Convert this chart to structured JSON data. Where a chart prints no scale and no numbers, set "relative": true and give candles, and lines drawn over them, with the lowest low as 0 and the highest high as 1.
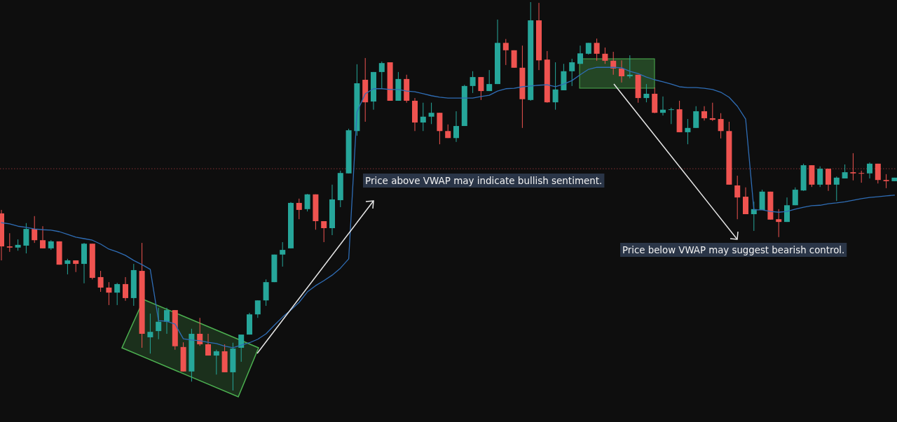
{
  "chart_data": {
    "type": "candlestick",
    "relative": true,
    "categories": [
      null,
      null,
      null,
      null,
      null,
      null,
      null,
      null,
      null,
      null,
      null,
      null,
      null,
      null,
      null,
      null,
      null,
      null,
      null,
      null,
      null,
      null,
      null,
      null,
      null,
      null,
      null,
      null,
      null,
      null,
      null,
      null,
      null,
      null,
      null,
      null,
      null,
      null,
      null,
      null,
      null,
      null,
      null,
      null,
      null,
      null,
      null,
      null,
      null,
      null,
      null,
      null,
      null,
      null,
      null,
      null,
      null,
      null,
      null,
      null,
      null,
      null,
      null,
      null,
      null,
      null,
      null,
      null,
      null,
      null,
      null,
      null,
      null,
      null,
      null,
      null,
      null,
      null,
      null,
      null,
      null,
      null,
      null,
      null,
      null,
      null,
      null,
      null,
      null,
      null,
      null,
      null,
      null,
      null,
      null,
      null,
      null,
      null,
      null,
      null,
      null,
      null,
      null,
      null,
      null,
      null,
      null,
      null,
      null
    ],
    "ohlc": [
      [
        0.456,
        0.465,
        0.335,
        0.371
      ],
      [
        0.371,
        0.405,
        0.357,
        0.368
      ],
      [
        0.368,
        0.389,
        0.36,
        0.375
      ],
      [
        0.373,
        0.431,
        0.353,
        0.416
      ],
      [
        0.416,
        0.449,
        0.38,
        0.387
      ],
      [
        0.387,
        0.423,
        0.366,
        0.366
      ],
      [
        0.366,
        0.387,
        0.362,
        0.384
      ],
      [
        0.384,
        0.384,
        0.324,
        0.324
      ],
      [
        0.326,
        0.339,
        0.299,
        0.335
      ],
      [
        0.335,
        0.335,
        0.305,
        0.326
      ],
      [
        0.326,
        0.38,
        0.276,
        0.378
      ],
      [
        0.378,
        0.378,
        0.286,
        0.29
      ],
      [
        0.292,
        0.308,
        0.254,
        0.265
      ],
      [
        0.265,
        0.279,
        0.22,
        0.252
      ],
      [
        0.252,
        0.277,
        0.22,
        0.274
      ],
      [
        0.274,
        0.292,
        0.231,
        0.238
      ],
      [
        0.238,
        0.326,
        0.218,
        0.31
      ],
      [
        0.308,
        0.38,
        0.11,
        0.146
      ],
      [
        0.137,
        0.198,
        0.095,
        0.151
      ],
      [
        0.153,
        0.213,
        0.132,
        0.177
      ],
      [
        0.177,
        0.213,
        0.146,
        0.207
      ],
      [
        0.207,
        0.207,
        0.105,
        0.114
      ],
      [
        0.112,
        0.124,
        0.049,
        0.049
      ],
      [
        0.049,
        0.159,
        0.023,
        0.146
      ],
      [
        0.146,
        0.187,
        0.115,
        0.119
      ],
      [
        0.119,
        0.146,
        0.09,
        0.09
      ],
      [
        0.09,
        0.105,
        0.041,
        0.101
      ],
      [
        0.101,
        0.119,
        0.047,
        0.047
      ],
      [
        0.047,
        0.123,
        0,
        0.108
      ],
      [
        0.11,
        0.144,
        0.074,
        0.144
      ],
      [
        0.144,
        0.2,
        0.144,
        0.196
      ],
      [
        0.196,
        0.232,
        0.187,
        0.232
      ],
      [
        0.232,
        0.286,
        0.218,
        0.279
      ],
      [
        0.279,
        0.35,
        0.279,
        0.35
      ],
      [
        0.35,
        0.382,
        0.319,
        0.362
      ],
      [
        0.366,
        0.485,
        0.366,
        0.483
      ],
      [
        0.483,
        0.494,
        0.441,
        0.465
      ],
      [
        0.467,
        0.506,
        0.461,
        0.505
      ],
      [
        0.505,
        0.505,
        0.414,
        0.436
      ],
      [
        0.436,
        0.436,
        0.382,
        0.418
      ],
      [
        0.418,
        0.53,
        0.4,
        0.492
      ],
      [
        0.49,
        0.566,
        0.472,
        0.56
      ],
      [
        0.559,
        0.674,
        0.559,
        0.67
      ],
      [
        0.668,
        0.84,
        0.656,
        0.791
      ],
      [
        0.8,
        0.856,
        0.692,
        0.742
      ],
      [
        0.744,
        0.82,
        0.723,
        0.82
      ],
      [
        0.82,
        0.847,
        0.777,
        0.843
      ],
      [
        0.845,
        0.845,
        0.746,
        0.746
      ],
      [
        0.746,
        0.82,
        0.746,
        0.802
      ],
      [
        0.802,
        0.813,
        0.741,
        0.746
      ],
      [
        0.746,
        0.753,
        0.668,
        0.69
      ],
      [
        0.69,
        0.741,
        0.668,
        0.705
      ],
      [
        0.705,
        0.741,
        0.686,
        0.715
      ],
      [
        0.715,
        0.715,
        0.634,
        0.668
      ],
      [
        0.668,
        0.685,
        0.65,
        0.65
      ],
      [
        0.65,
        0.719,
        0.64,
        0.681
      ],
      [
        0.681,
        0.787,
        0.681,
        0.784
      ],
      [
        0.784,
        0.822,
        0.766,
        0.807
      ],
      [
        0.807,
        0.807,
        0.748,
        0.771
      ],
      [
        0.771,
        0.825,
        0.771,
        0.789
      ],
      [
        0.789,
        0.955,
        0.789,
        0.895
      ],
      [
        0.895,
        0.905,
        0.838,
        0.876
      ],
      [
        0.876,
        0.876,
        0.831,
        0.831
      ],
      [
        0.831,
        0.888,
        0.676,
        0.75
      ],
      [
        0.748,
        1,
        0.746,
        0.953
      ],
      [
        0.953,
        0.998,
        0.825,
        0.85
      ],
      [
        0.852,
        0.874,
        0.741,
        0.742
      ],
      [
        0.742,
        0.845,
        0.723,
        0.775
      ],
      [
        0.773,
        0.841,
        0.773,
        0.822
      ],
      [
        0.822,
        0.854,
        0.784,
        0.845
      ],
      [
        0.841,
        0.888,
        0.841,
        0.868
      ],
      [
        0.867,
        0.895,
        0.865,
        0.895
      ],
      [
        0.895,
        0.906,
        0.849,
        0.867
      ],
      [
        0.867,
        0.883,
        0.841,
        0.849
      ],
      [
        0.849,
        0.872,
        0.813,
        0.829
      ],
      [
        0.829,
        0.85,
        0.793,
        0.809
      ],
      [
        0.809,
        0.863,
        0.804,
        0.813
      ],
      [
        0.813,
        0.813,
        0.741,
        0.753
      ],
      [
        0.753,
        0.789,
        0.742,
        0.764
      ],
      [
        0.764,
        0.78,
        0.714,
        0.715
      ],
      [
        0.715,
        0.757,
        0.708,
        0.723
      ],
      [
        0.723,
        0.728,
        0.686,
        0.724
      ],
      [
        0.724,
        0.746,
        0.665,
        0.665
      ],
      [
        0.665,
        0.699,
        0.634,
        0.676
      ],
      [
        0.676,
        0.732,
        0.676,
        0.719
      ],
      [
        0.719,
        0.732,
        0.695,
        0.701
      ],
      [
        0.701,
        0.741,
        0.694,
        0.697
      ],
      [
        0.699,
        0.714,
        0.649,
        0.668
      ],
      [
        0.668,
        0.692,
        0.53,
        0.53
      ],
      [
        0.528,
        0.553,
        0.441,
        0.497
      ],
      [
        0.499,
        0.523,
        0.454,
        0.454
      ],
      [
        0.454,
        0.486,
        0.411,
        0.467
      ],
      [
        0.465,
        0.517,
        0.465,
        0.512
      ],
      [
        0.512,
        0.512,
        0.44,
        0.44
      ],
      [
        0.441,
        0.467,
        0.395,
        0.434
      ],
      [
        0.434,
        0.497,
        0.434,
        0.477
      ],
      [
        0.477,
        0.523,
        0.477,
        0.517
      ],
      [
        0.515,
        0.584,
        0.514,
        0.58
      ],
      [
        0.58,
        0.58,
        0.524,
        0.53
      ],
      [
        0.53,
        0.577,
        0.524,
        0.571
      ],
      [
        0.571,
        0.571,
        0.514,
        0.53
      ],
      [
        0.53,
        0.551,
        0.488,
        0.548
      ],
      [
        0.546,
        0.582,
        0.546,
        0.562
      ],
      [
        0.562,
        0.611,
        0.541,
        0.559
      ],
      [
        0.56,
        0.566,
        0.535,
        0.559
      ],
      [
        0.559,
        0.587,
        0.546,
        0.584
      ],
      [
        0.584,
        0.584,
        0.533,
        0.542
      ],
      [
        0.542,
        0.557,
        0.521,
        0.539
      ],
      [
        0.539,
        0.548,
        0.539,
        0.548
      ]
    ],
    "colors": [
      "#ef5350",
      "#ef5350",
      "#26a69a",
      "#26a69a",
      "#ef5350",
      "#ef5350",
      "#26a69a",
      "#ef5350",
      "#26a69a",
      "#ef5350",
      "#26a69a",
      "#ef5350",
      "#ef5350",
      "#ef5350",
      "#26a69a",
      "#ef5350",
      "#26a69a",
      "#ef5350",
      "#26a69a",
      "#26a69a",
      "#26a69a",
      "#ef5350",
      "#ef5350",
      "#26a69a",
      "#ef5350",
      "#ef5350",
      "#26a69a",
      "#ef5350",
      "#26a69a",
      "#26a69a",
      "#26a69a",
      "#26a69a",
      "#26a69a",
      "#26a69a",
      "#26a69a",
      "#26a69a",
      "#ef5350",
      "#26a69a",
      "#ef5350",
      "#ef5350",
      "#26a69a",
      "#26a69a",
      "#26a69a",
      "#26a69a",
      "#ef5350",
      "#26a69a",
      "#26a69a",
      "#ef5350",
      "#26a69a",
      "#ef5350",
      "#ef5350",
      "#26a69a",
      "#26a69a",
      "#ef5350",
      "#ef5350",
      "#26a69a",
      "#26a69a",
      "#26a69a",
      "#ef5350",
      "#26a69a",
      "#26a69a",
      "#ef5350",
      "#ef5350",
      "#ef5350",
      "#26a69a",
      "#ef5350",
      "#ef5350",
      "#26a69a",
      "#26a69a",
      "#26a69a",
      "#26a69a",
      "#26a69a",
      "#ef5350",
      "#ef5350",
      "#ef5350",
      "#ef5350",
      "#26a69a",
      "#ef5350",
      "#26a69a",
      "#ef5350",
      "#26a69a",
      "#26a69a",
      "#ef5350",
      "#26a69a",
      "#26a69a",
      "#ef5350",
      "#ef5350",
      "#ef5350",
      "#ef5350",
      "#ef5350",
      "#ef5350",
      "#26a69a",
      "#26a69a",
      "#ef5350",
      "#ef5350",
      "#26a69a",
      "#26a69a",
      "#26a69a",
      "#ef5350",
      "#26a69a",
      "#ef5350",
      "#26a69a",
      "#26a69a",
      "#ef5350",
      "#ef5350",
      "#26a69a",
      "#ef5350",
      "#ef5350",
      "#26a69a"
    ],
    "series": [
      {
        "type": "line",
        "color": "#2f6db5",
        "values": [
          0.432,
          0.429,
          0.423,
          0.42,
          0.416,
          0.414,
          0.413,
          0.409,
          0.402,
          0.395,
          0.391,
          0.387,
          0.377,
          0.364,
          0.357,
          0.348,
          0.335,
          0.324,
          0.312,
          0.18,
          0.178,
          0.171,
          0.133,
          0.13,
          0.128,
          0.124,
          0.121,
          0.114,
          0.11,
          0.117,
          0.123,
          0.132,
          0.146,
          0.168,
          0.189,
          0.207,
          0.227,
          0.254,
          0.27,
          0.283,
          0.297,
          0.315,
          0.339,
          0.717,
          0.764,
          0.777,
          0.777,
          0.775,
          0.775,
          0.771,
          0.769,
          0.764,
          0.759,
          0.755,
          0.753,
          0.753,
          0.753,
          0.753,
          0.757,
          0.76,
          0.771,
          0.777,
          0.778,
          0.782,
          0.784,
          0.786,
          0.787,
          0.782,
          0.789,
          0.798,
          0.813,
          0.827,
          0.832,
          0.832,
          0.832,
          0.831,
          0.822,
          0.816,
          0.807,
          0.8,
          0.795,
          0.789,
          0.782,
          0.78,
          0.78,
          0.778,
          0.775,
          0.768,
          0.755,
          0.732,
          0.699,
          0.465,
          0.465,
          0.461,
          0.459,
          0.461,
          0.467,
          0.472,
          0.476,
          0.477,
          0.481,
          0.483,
          0.486,
          0.49,
          0.494,
          0.497,
          0.499,
          0.501,
          0.503
        ]
      }
    ],
    "ref_lines": [
      {
        "axis": "y",
        "value": 0.571,
        "color": "#8a3236",
        "line_style": "dotted"
      }
    ],
    "annotations": [
      "Price above VWAP may indicate bullish sentiment.",
      "Price below VWAP may suggest bearish control."
    ]
  }
}
